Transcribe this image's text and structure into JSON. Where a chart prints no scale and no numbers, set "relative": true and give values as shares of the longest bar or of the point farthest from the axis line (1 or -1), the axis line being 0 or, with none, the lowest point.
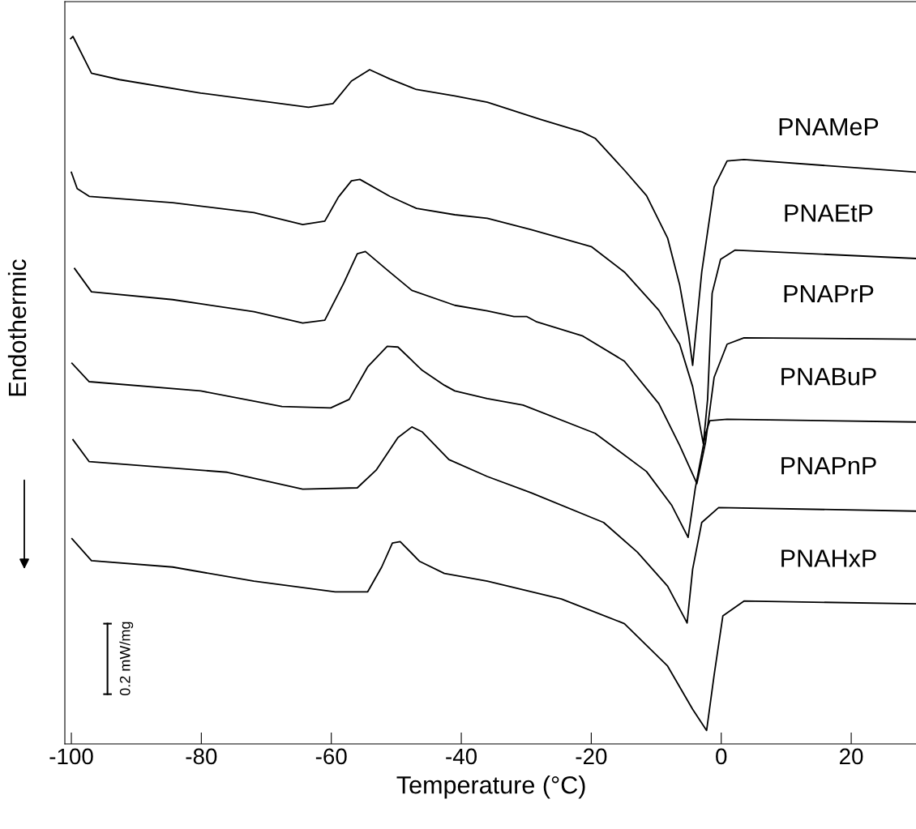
{
  "chart_data": {
    "type": "line",
    "relative": true,
    "xlabel": "Temperature (°C)",
    "ylabel": "Endothermic",
    "xlim": [
      -101,
      30.25
    ],
    "xticks": [
      -100,
      -80,
      -60,
      -40,
      -20,
      0,
      20
    ],
    "grid": false,
    "legend": false,
    "marker": "none",
    "line_style": "solid",
    "tick_labels": "x",
    "annotations": [
      "0.2 mW/mg"
    ],
    "series": [
      {
        "name": "PNAMeP",
        "color": "#000000",
        "x": [
          -100.1,
          -99.75,
          -96.9,
          -92.6,
          -80.1,
          -63.5,
          -59.75,
          -56.9,
          -54.1,
          -51,
          -46.9,
          -41,
          -36,
          -27.9,
          -21.4,
          -19.4,
          -14.9,
          -11.5,
          -8.25,
          -6.4,
          -5,
          -4.4,
          -3,
          -1.1,
          0.9,
          3.5,
          30.25
        ],
        "values": [
          0.997,
          1.0,
          0.948,
          0.939,
          0.92,
          0.9,
          0.905,
          0.937,
          0.953,
          0.94,
          0.925,
          0.916,
          0.907,
          0.883,
          0.865,
          0.856,
          0.811,
          0.775,
          0.715,
          0.649,
          0.577,
          0.535,
          0.667,
          0.787,
          0.824,
          0.826,
          0.808
        ]
      },
      {
        "name": "PNAEtP",
        "color": "#000000",
        "x": [
          -100,
          -99.1,
          -97.25,
          -84.4,
          -71.9,
          -64.4,
          -61,
          -58.9,
          -56.9,
          -55.6,
          -51,
          -46.9,
          -41,
          -36,
          -29.25,
          -20,
          -14.9,
          -9.6,
          -6.4,
          -4.4,
          -2.75,
          -2.1,
          -1.4,
          -0.1,
          2.1,
          30.25
        ],
        "values": [
          0.808,
          0.785,
          0.774,
          0.765,
          0.751,
          0.734,
          0.739,
          0.773,
          0.796,
          0.798,
          0.774,
          0.757,
          0.748,
          0.743,
          0.727,
          0.703,
          0.667,
          0.613,
          0.565,
          0.505,
          0.424,
          0.487,
          0.637,
          0.685,
          0.698,
          0.686
        ]
      },
      {
        "name": "PNAPrP",
        "color": "#000000",
        "x": [
          -99.5,
          -96.9,
          -84.4,
          -71.9,
          -64.4,
          -61,
          -58.1,
          -56,
          -54.75,
          -51.4,
          -47.6,
          -41,
          -36,
          -31.9,
          -29.9,
          -28.5,
          -21.4,
          -14.9,
          -9.6,
          -6.4,
          -3.75,
          -2.4,
          -1.1,
          0.9,
          3.5,
          30.25
        ],
        "values": [
          0.672,
          0.639,
          0.628,
          0.611,
          0.595,
          0.599,
          0.651,
          0.693,
          0.696,
          0.67,
          0.641,
          0.62,
          0.612,
          0.604,
          0.604,
          0.597,
          0.577,
          0.541,
          0.481,
          0.422,
          0.368,
          0.427,
          0.518,
          0.565,
          0.574,
          0.572
        ]
      },
      {
        "name": "PNABuP",
        "color": "#000000",
        "x": [
          -99.9,
          -97.25,
          -80.1,
          -67.6,
          -60.1,
          -57.25,
          -54.4,
          -51.4,
          -49.75,
          -46,
          -42.6,
          -41,
          -36,
          -30.5,
          -19.4,
          -11.5,
          -7.6,
          -5.1,
          -4,
          -2.4,
          -1.75,
          0.9,
          30.25
        ],
        "values": [
          0.538,
          0.512,
          0.499,
          0.477,
          0.475,
          0.487,
          0.533,
          0.562,
          0.561,
          0.528,
          0.507,
          0.499,
          0.488,
          0.479,
          0.439,
          0.385,
          0.337,
          0.292,
          0.361,
          0.439,
          0.457,
          0.459,
          0.455
        ]
      },
      {
        "name": "PNAPnP",
        "color": "#000000",
        "x": [
          -99.75,
          -97.25,
          -76,
          -64.4,
          -56,
          -53.1,
          -49.75,
          -47.6,
          -46,
          -41.9,
          -36,
          -29.25,
          -18.1,
          -12.9,
          -8.25,
          -5.25,
          -4.4,
          -3,
          -0.4,
          30.25
        ],
        "values": [
          0.43,
          0.399,
          0.384,
          0.36,
          0.362,
          0.387,
          0.433,
          0.448,
          0.441,
          0.402,
          0.378,
          0.355,
          0.313,
          0.271,
          0.223,
          0.171,
          0.247,
          0.313,
          0.334,
          0.329
        ]
      },
      {
        "name": "PNAHxP",
        "color": "#000000",
        "x": [
          -99.9,
          -96.9,
          -84.4,
          -71.9,
          -59.4,
          -54.4,
          -52.25,
          -50.6,
          -49.4,
          -46.4,
          -42.6,
          -36,
          -24.6,
          -14.9,
          -8.25,
          -4.4,
          -2.25,
          -1.1,
          0.25,
          3.5,
          30.25
        ],
        "values": [
          0.29,
          0.259,
          0.25,
          0.23,
          0.215,
          0.215,
          0.25,
          0.284,
          0.286,
          0.258,
          0.241,
          0.23,
          0.205,
          0.17,
          0.11,
          0.049,
          0.019,
          0.097,
          0.181,
          0.202,
          0.198
        ]
      }
    ]
  }
}
